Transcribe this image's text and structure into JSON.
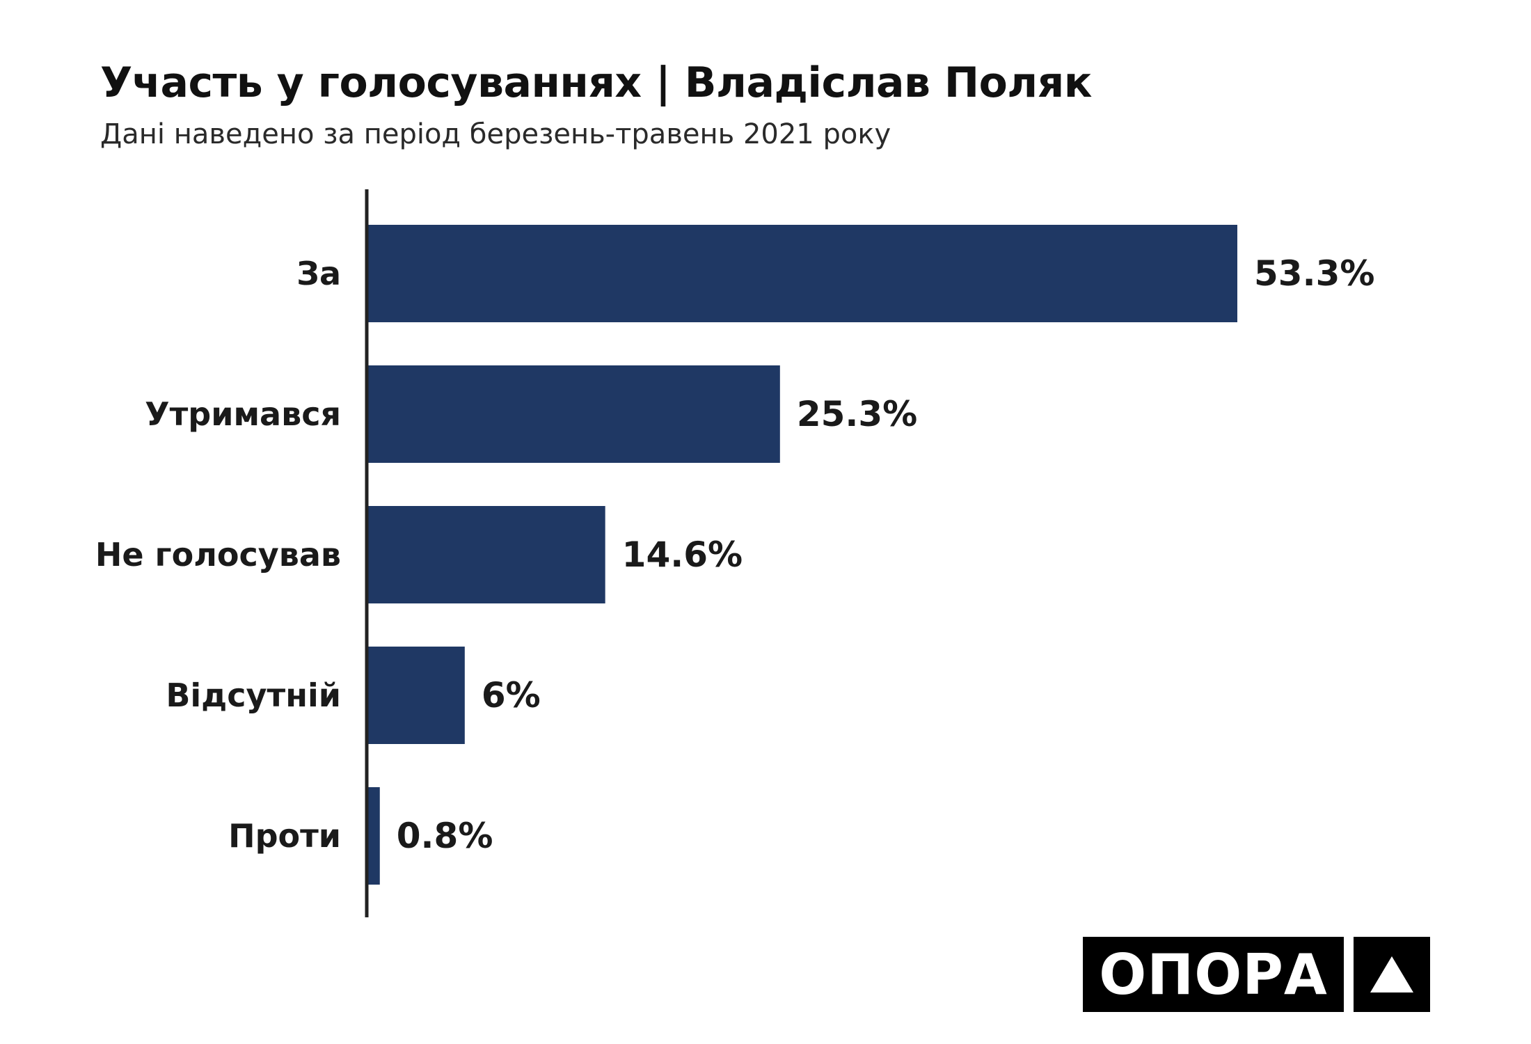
{
  "chart_data": {
    "type": "bar",
    "orientation": "horizontal",
    "title": "Участь у голосуваннях | Владіслав Поляк",
    "subtitle": "Дані наведено за період березень-травень 2021 року",
    "categories": [
      "За",
      "Утримався",
      "Не голосував",
      "Відсутній",
      "Проти"
    ],
    "values": [
      53.3,
      25.3,
      14.6,
      6,
      0.8
    ],
    "value_labels": [
      "53.3%",
      "25.3%",
      "14.6%",
      "6%",
      "0.8%"
    ],
    "unit": "%",
    "grid": false,
    "legend": "none",
    "colors": {
      "bar": "#1f3864",
      "axis": "#222222",
      "text": "#1a1a1a"
    }
  },
  "logo": {
    "text": "ОПОРА",
    "icon": "triangle-logo-icon"
  }
}
